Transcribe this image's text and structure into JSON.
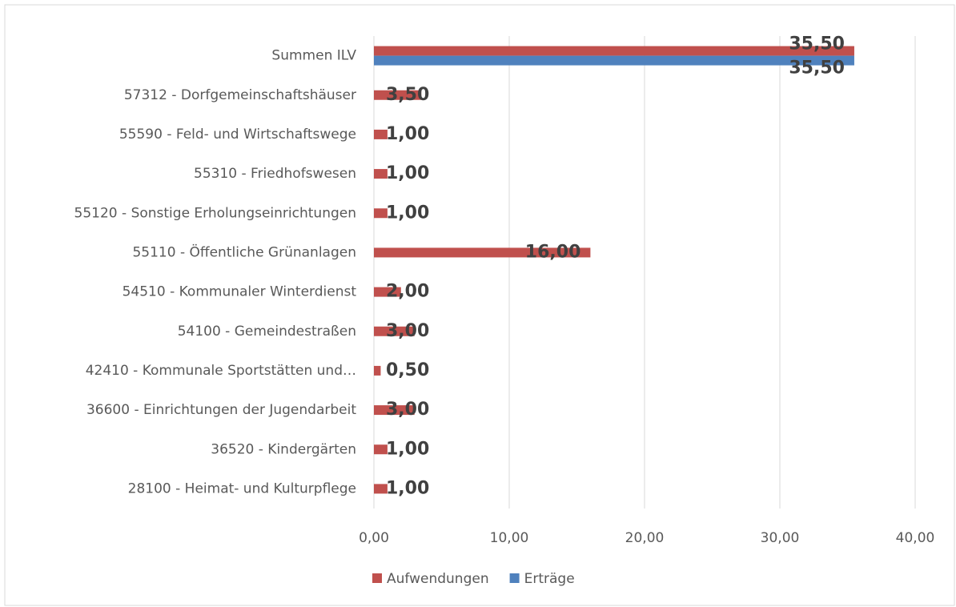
{
  "chart_data": {
    "type": "hbar",
    "categories": [
      "Summen ILV",
      "57312 - Dorfgemeinschaftshäuser",
      "55590 - Feld- und Wirtschaftswege",
      "55310 - Friedhofswesen",
      "55120 - Sonstige Erholungseinrichtungen",
      "55110 - Öffentliche Grünanlagen",
      "54510 - Kommunaler Winterdienst",
      "54100 - Gemeindestraßen",
      "42410 - Kommunale Sportstätten und…",
      "36600 - Einrichtungen der Jugendarbeit",
      "36520 - Kindergärten",
      "28100 - Heimat- und Kulturpflege"
    ],
    "series": [
      {
        "name": "Aufwendungen",
        "color": "#c0504d",
        "values": [
          35.5,
          3.5,
          1,
          1,
          1,
          16,
          2,
          3,
          0.5,
          3,
          1,
          1
        ],
        "value_labels": [
          "35,50",
          "3,50",
          "1,00",
          "1,00",
          "1,00",
          "16,00",
          "2,00",
          "3,00",
          "0,50",
          "3,00",
          "1,00",
          "1,00"
        ]
      },
      {
        "name": "Erträge",
        "color": "#4f81bd",
        "values": [
          35.5,
          null,
          null,
          null,
          null,
          null,
          null,
          null,
          null,
          null,
          null,
          null
        ],
        "value_labels": [
          "35,50",
          null,
          null,
          null,
          null,
          null,
          null,
          null,
          null,
          null,
          null,
          null
        ]
      }
    ],
    "xlim": [
      0,
      40
    ],
    "xticks": [
      {
        "value": 0,
        "label": "0,00"
      },
      {
        "value": 10,
        "label": "10,00"
      },
      {
        "value": 20,
        "label": "20,00"
      },
      {
        "value": 30,
        "label": "30,00"
      },
      {
        "value": 40,
        "label": "40,00"
      }
    ],
    "grid": true,
    "legend": "bottom"
  }
}
